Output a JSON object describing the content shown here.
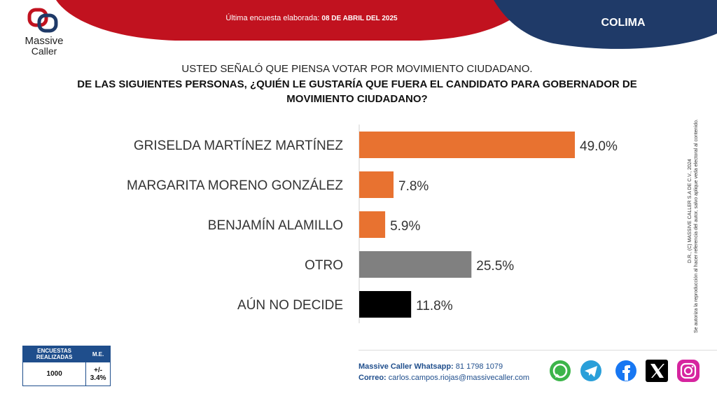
{
  "header": {
    "survey_label": "Última encuesta elaborada:",
    "survey_date": "08 DE ABRIL DEL 2025",
    "state": "COLIMA",
    "brand_line1": "Massive",
    "brand_line2": "Caller"
  },
  "question": {
    "line1": "USTED SEÑALÓ QUE PIENSA VOTAR POR MOVIMIENTO CIUDADANO.",
    "line2": "DE LAS SIGUIENTES PERSONAS, ¿QUIÉN LE GUSTARÍA QUE FUERA EL CANDIDATO PARA GOBERNADOR DE MOVIMIENTO CIUDADANO?"
  },
  "chart_data": {
    "type": "bar",
    "orientation": "horizontal",
    "categories": [
      "GRISELDA MARTÍNEZ MARTÍNEZ",
      "MARGARITA MORENO GONZÁLEZ",
      "BENJAMÍN ALAMILLO",
      "OTRO",
      "AÚN NO DECIDE"
    ],
    "values": [
      49.0,
      7.8,
      5.9,
      25.5,
      11.8
    ],
    "value_labels": [
      "49.0%",
      "7.8%",
      "5.9%",
      "25.5%",
      "11.8%"
    ],
    "colors": [
      "#e87230",
      "#e87230",
      "#e87230",
      "#808080",
      "#000000"
    ],
    "xlim": [
      0,
      60
    ],
    "grid": false,
    "legend": "none"
  },
  "stats": {
    "col1_header": "ENCUESTAS REALIZADAS",
    "col2_header": "M.E.",
    "col1_value": "1000",
    "col2_value": "+/- 3.4%"
  },
  "side_note": {
    "line1": "D.R., (C) MASSIVE CALLER S.A DE C.V., 2024",
    "line2": "Se autoriza la reproducción al hacer referencia del autor, salvo aplique veda electoral al contenido."
  },
  "contact": {
    "whatsapp_label": "Massive Caller Whatsapp:",
    "whatsapp_value": "81 1798 1079",
    "email_label": "Correo:",
    "email_value": "carlos.campos.riojas@massivecaller.com"
  },
  "colors": {
    "orange": "#e87230",
    "navy": "#1f3a68",
    "red": "#c1121f",
    "gray": "#808080"
  },
  "icons": [
    "whatsapp-icon",
    "telegram-icon",
    "facebook-icon",
    "x-icon",
    "instagram-icon"
  ]
}
